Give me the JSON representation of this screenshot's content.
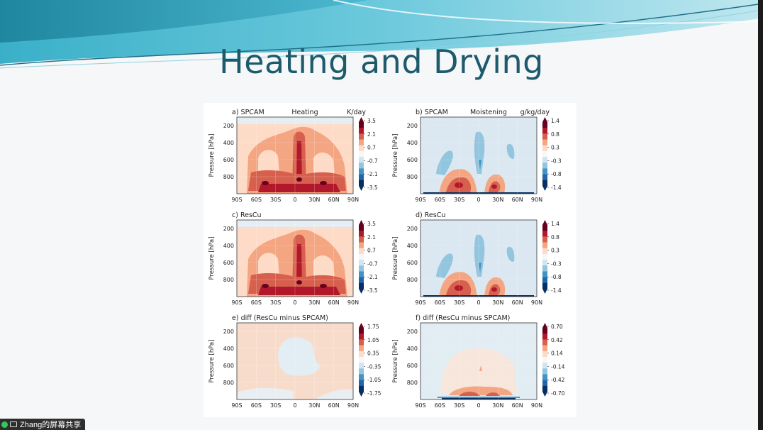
{
  "slide": {
    "title": "Heating and Drying"
  },
  "share_bar": {
    "label": "Zhang的屏幕共享",
    "icon_left": "microphone-status-icon",
    "icon_right": "screen-share-icon"
  },
  "figure": {
    "colormap": [
      "#053061",
      "#2166ac",
      "#4393c3",
      "#92c5de",
      "#d1e5f0",
      "#f7f7f7",
      "#fddbc7",
      "#f4a582",
      "#d6604d",
      "#b2182b",
      "#67001f"
    ],
    "x_ticks": [
      "90S",
      "60S",
      "30S",
      "0",
      "30N",
      "60N",
      "90N"
    ],
    "y_ticks": [
      "200",
      "400",
      "600",
      "800"
    ],
    "y_label": "Pressure [hPa]",
    "panels": [
      {
        "id": "a",
        "left": "a) SPCAM",
        "center": "Heating",
        "unit": "K/day",
        "cbar": [
          "3.5",
          "2.1",
          "0.7",
          "-0.7",
          "-2.1",
          "-3.5"
        ],
        "pattern": "heating"
      },
      {
        "id": "b",
        "left": "b) SPCAM",
        "center": "Moistening",
        "unit": "g/kg/day",
        "cbar": [
          "1.4",
          "0.8",
          "0.3",
          "-0.3",
          "-0.8",
          "-1.4"
        ],
        "pattern": "moist"
      },
      {
        "id": "c",
        "left": "c) ResCu",
        "center": "",
        "unit": "",
        "cbar": [
          "3.5",
          "2.1",
          "0.7",
          "-0.7",
          "-2.1",
          "-3.5"
        ],
        "pattern": "heating"
      },
      {
        "id": "d",
        "left": "d) ResCu",
        "center": "",
        "unit": "",
        "cbar": [
          "1.4",
          "0.8",
          "0.3",
          "-0.3",
          "-0.8",
          "-1.4"
        ],
        "pattern": "moist"
      },
      {
        "id": "e",
        "left": "e) diff (ResCu minus SPCAM)",
        "center": "",
        "unit": "",
        "cbar": [
          "1.75",
          "1.05",
          "0.35",
          "-0.35",
          "-1.05",
          "-1.75"
        ],
        "pattern": "diffh"
      },
      {
        "id": "f",
        "left": "f) diff (ResCu minus SPCAM)",
        "center": "",
        "unit": "",
        "cbar": [
          "0.70",
          "0.42",
          "0.14",
          "-0.14",
          "-0.42",
          "-0.70"
        ],
        "pattern": "diffm"
      }
    ]
  }
}
